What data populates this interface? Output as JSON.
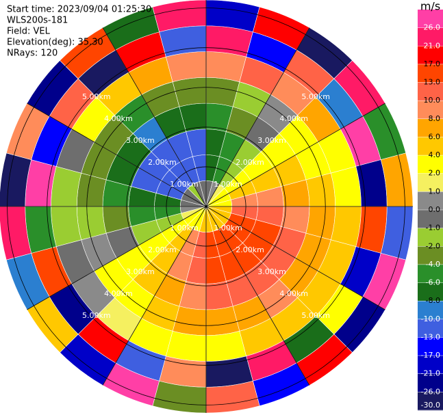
{
  "chart_data": {
    "type": "ppi",
    "annotations": [
      "Start time: 2023/09/04 01:25:30",
      "WLS200s-181",
      "Field: VEL",
      "Elevation(deg): 35.30",
      "NRays: 120"
    ],
    "colorbar": {
      "label": "m/s",
      "ticks": [
        {
          "value": 26,
          "label": "26.0"
        },
        {
          "value": 21,
          "label": "21.0"
        },
        {
          "value": 17,
          "label": "17.0"
        },
        {
          "value": 13,
          "label": "13.0"
        },
        {
          "value": 10,
          "label": "10.0"
        },
        {
          "value": 8,
          "label": "8.0"
        },
        {
          "value": 6,
          "label": "6.0"
        },
        {
          "value": 4,
          "label": "4.0"
        },
        {
          "value": 2,
          "label": "2.0"
        },
        {
          "value": 1,
          "label": "1.0"
        },
        {
          "value": 0,
          "label": "0.0"
        },
        {
          "value": -1,
          "label": "-1.0"
        },
        {
          "value": -2,
          "label": "-2.0"
        },
        {
          "value": -4,
          "label": "-4.0"
        },
        {
          "value": -6,
          "label": "-6.0"
        },
        {
          "value": -8,
          "label": "-8.0"
        },
        {
          "value": -10,
          "label": "-10.0"
        },
        {
          "value": -13,
          "label": "-13.0"
        },
        {
          "value": -17,
          "label": "-17.0"
        },
        {
          "value": -21,
          "label": "-21.0"
        },
        {
          "value": -26,
          "label": "-26.0"
        },
        {
          "value": -30,
          "label": "-30.0"
        }
      ],
      "colors": [
        "#ff3fa6",
        "#ff1a66",
        "#ff0000",
        "#ff4500",
        "#ff6347",
        "#ff8c5a",
        "#ffa500",
        "#ffc800",
        "#ffff00",
        "#f5f060",
        "#8a8a8a",
        "#6e6e6e",
        "#9acd32",
        "#6b8e23",
        "#2a8f2a",
        "#1a6e1a",
        "#2b7fd0",
        "#3f5fe0",
        "#0000ff",
        "#0000c8",
        "#00008b",
        "#191960"
      ]
    },
    "rings": [
      {
        "value": 1,
        "label": "1.00km"
      },
      {
        "value": 2,
        "label": "2.00km"
      },
      {
        "value": 3,
        "label": "3.00km"
      },
      {
        "value": 4,
        "label": "4.00km"
      },
      {
        "value": 5,
        "label": "5.00km"
      }
    ],
    "rlim": [
      0,
      5.2
    ],
    "azimuths": [
      0,
      15,
      30,
      45,
      60,
      75,
      90,
      105,
      120,
      135,
      150,
      165,
      180,
      195,
      210,
      225,
      240,
      255,
      270,
      285,
      300,
      315,
      330,
      345
    ],
    "range_bins": [
      0,
      0.65,
      1.3,
      1.95,
      2.6,
      3.25,
      3.9,
      4.55,
      5.2
    ],
    "values": [
      [
        -1,
        -8,
        -8,
        -6,
        -3,
        9,
        25,
        -20
      ],
      [
        0,
        -6,
        -6,
        -4,
        -2,
        10,
        -14,
        18
      ],
      [
        1,
        -2,
        -2,
        -1,
        0,
        8,
        12,
        -27
      ],
      [
        2,
        2,
        2,
        2,
        2,
        6,
        -9,
        22
      ],
      [
        2,
        5,
        5,
        4,
        3,
        2,
        28,
        -5
      ],
      [
        3,
        9,
        9,
        7,
        5,
        3,
        -22,
        7
      ],
      [
        4,
        11,
        11,
        9,
        6,
        4,
        15,
        -12
      ],
      [
        4,
        14,
        14,
        10,
        7,
        4,
        -18,
        27
      ],
      [
        4,
        15,
        15,
        11,
        7,
        4,
        3,
        -24
      ],
      [
        5,
        16,
        16,
        12,
        8,
        5,
        -7,
        19
      ],
      [
        4,
        15,
        15,
        11,
        7,
        4,
        23,
        -15
      ],
      [
        4,
        14,
        14,
        10,
        7,
        3,
        -28,
        11
      ],
      [
        4,
        11,
        11,
        9,
        6,
        3,
        9,
        -3
      ],
      [
        3,
        9,
        9,
        7,
        5,
        2,
        -11,
        26
      ],
      [
        2,
        5,
        5,
        4,
        3,
        1,
        18,
        -19
      ],
      [
        2,
        2,
        2,
        2,
        2,
        0,
        -25,
        5
      ],
      [
        1,
        -2,
        -2,
        -1,
        0,
        -1,
        14,
        -9
      ],
      [
        0,
        -6,
        -6,
        -4,
        -2,
        -2,
        -6,
        21
      ],
      [
        -1,
        -8,
        -8,
        -6,
        -3,
        -2,
        27,
        -29
      ],
      [
        -1,
        -11,
        -11,
        -7,
        -4,
        -1,
        -16,
        8
      ],
      [
        -1,
        -12,
        -12,
        -8,
        -4,
        2,
        10,
        -22
      ],
      [
        -2,
        -13,
        -13,
        -9,
        -5,
        4,
        -27,
        16
      ],
      [
        -1,
        -12,
        -12,
        -8,
        -4,
        6,
        20,
        -8
      ],
      [
        -1,
        -11,
        -11,
        -7,
        -4,
        8,
        -13,
        24
      ]
    ]
  }
}
